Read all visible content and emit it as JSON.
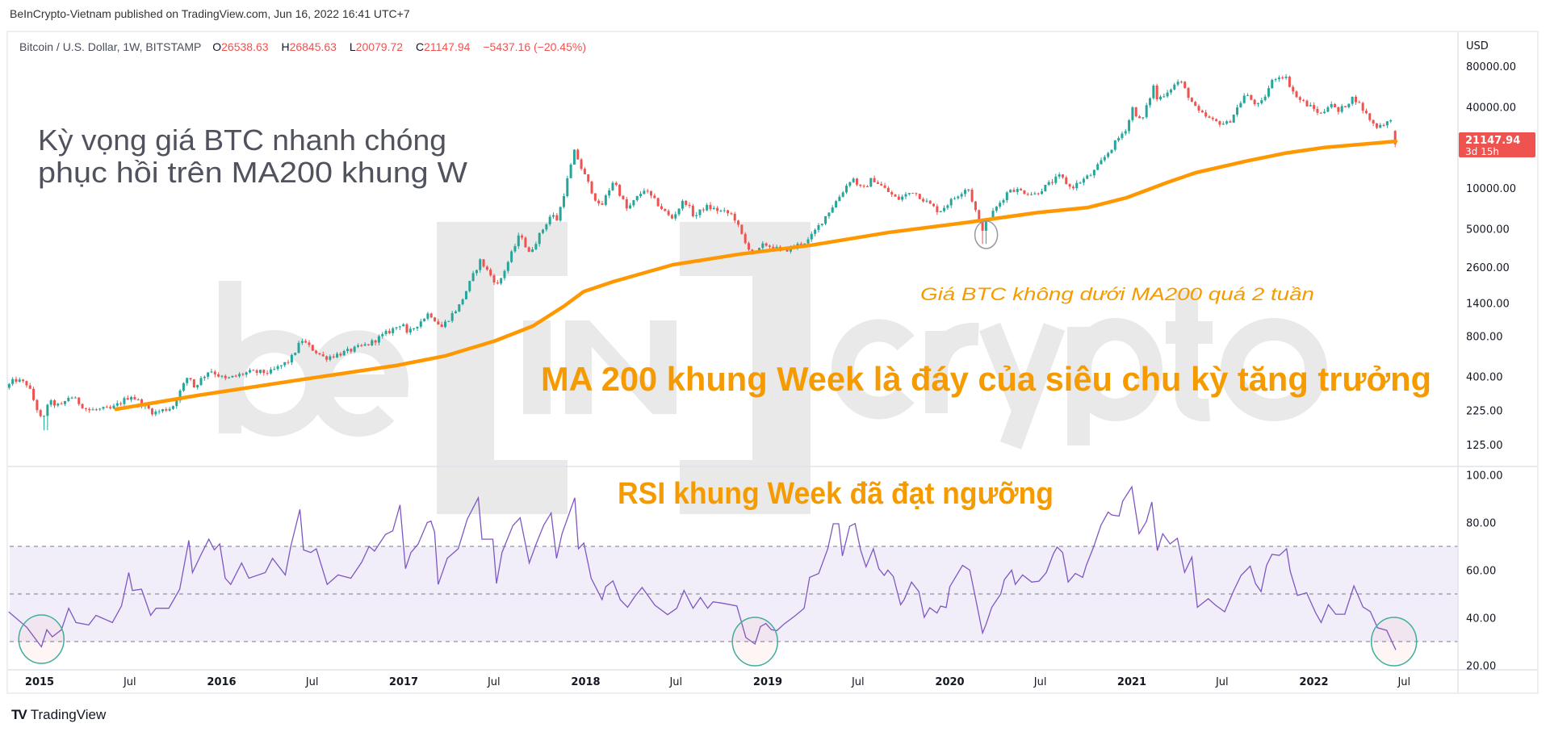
{
  "header": {
    "published": "BeInCrypto-Vietnam published on TradingView.com, Jun 16, 2022 16:41 UTC+7"
  },
  "legend": {
    "symbol": "Bitcoin / U.S. Dollar, 1W, BITSTAMP",
    "o_label": "O",
    "o": "26538.63",
    "h_label": "H",
    "h": "26845.63",
    "l_label": "L",
    "l": "20079.72",
    "c_label": "C",
    "c": "21147.94",
    "change": "−5437.16 (−20.45%)"
  },
  "price_axis": {
    "currency": "USD",
    "ticks": [
      "80000.00",
      "40000.00",
      "10000.00",
      "5000.00",
      "2600.00",
      "1400.00",
      "800.00",
      "400.00",
      "225.00",
      "125.00"
    ],
    "last_price": "21147.94",
    "countdown": "3d 15h"
  },
  "rsi_axis": {
    "ticks": [
      "100.00",
      "80.00",
      "60.00",
      "40.00",
      "20.00"
    ]
  },
  "time_axis": [
    {
      "label": "2015",
      "date": "2015-01-01",
      "year": true
    },
    {
      "label": "Jul",
      "date": "2015-07-01"
    },
    {
      "label": "2016",
      "date": "2016-01-01",
      "year": true
    },
    {
      "label": "Jul",
      "date": "2016-07-01"
    },
    {
      "label": "2017",
      "date": "2017-01-01",
      "year": true
    },
    {
      "label": "Jul",
      "date": "2017-07-01"
    },
    {
      "label": "2018",
      "date": "2018-01-01",
      "year": true
    },
    {
      "label": "Jul",
      "date": "2018-07-01"
    },
    {
      "label": "2019",
      "date": "2019-01-01",
      "year": true
    },
    {
      "label": "Jul",
      "date": "2019-07-01"
    },
    {
      "label": "2020",
      "date": "2020-01-01",
      "year": true
    },
    {
      "label": "Jul",
      "date": "2020-07-01"
    },
    {
      "label": "2021",
      "date": "2021-01-01",
      "year": true
    },
    {
      "label": "Jul",
      "date": "2021-07-01"
    },
    {
      "label": "2022",
      "date": "2022-01-01",
      "year": true
    },
    {
      "label": "Jul",
      "date": "2022-07-01"
    }
  ],
  "annotations": {
    "title_line1": "Kỳ vọng giá BTC nhanh chóng",
    "title_line2": "phục hồi trên MA200 khung W",
    "ma_note": "Giá BTC không dưới MA200 quá 2 tuần",
    "ma_bottom": "MA 200 khung Week là đáy của siêu chu kỳ tăng trưởng",
    "rsi_note": "RSI khung Week đã đạt ngưỡng"
  },
  "watermark": {
    "left": "be",
    "mid": "IN",
    "right": "crypto"
  },
  "footer": {
    "logo": "TV",
    "brand": "TradingView"
  },
  "colors": {
    "up": "#26a69a",
    "down": "#ef5350",
    "ma": "#ff9800",
    "rsi": "#7e57c2",
    "annotation": "#f59b00",
    "title": "#50535e",
    "circle_green": "#3fae9c",
    "circle_gray": "#9598a1"
  },
  "chart_data": {
    "type": "candlestick+line",
    "title": "Bitcoin / U.S. Dollar, 1W, BITSTAMP",
    "yscale": "log",
    "ylim": [
      100,
      100000
    ],
    "xlim": [
      "2014-10-20",
      "2022-12-01"
    ],
    "price_path_approx": [
      [
        "2014-11-01",
        330
      ],
      [
        "2014-11-20",
        380
      ],
      [
        "2014-12-15",
        350
      ],
      [
        "2015-01-14",
        180
      ],
      [
        "2015-01-25",
        260
      ],
      [
        "2015-02-20",
        240
      ],
      [
        "2015-03-10",
        290
      ],
      [
        "2015-04-15",
        225
      ],
      [
        "2015-06-01",
        230
      ],
      [
        "2015-07-10",
        290
      ],
      [
        "2015-08-25",
        215
      ],
      [
        "2015-10-01",
        237
      ],
      [
        "2015-11-04",
        420
      ],
      [
        "2015-11-12",
        330
      ],
      [
        "2015-12-15",
        450
      ],
      [
        "2016-01-15",
        380
      ],
      [
        "2016-03-01",
        430
      ],
      [
        "2016-04-15",
        430
      ],
      [
        "2016-05-25",
        530
      ],
      [
        "2016-06-17",
        750
      ],
      [
        "2016-07-01",
        670
      ],
      [
        "2016-08-02",
        550
      ],
      [
        "2016-09-15",
        610
      ],
      [
        "2016-10-31",
        700
      ],
      [
        "2016-12-31",
        965
      ],
      [
        "2017-01-05",
        1100
      ],
      [
        "2017-01-12",
        800
      ],
      [
        "2017-02-28",
        1190
      ],
      [
        "2017-03-25",
        930
      ],
      [
        "2017-04-30",
        1350
      ],
      [
        "2017-06-10",
        2900
      ],
      [
        "2017-07-16",
        1900
      ],
      [
        "2017-08-31",
        4700
      ],
      [
        "2017-09-15",
        3200
      ],
      [
        "2017-10-31",
        6400
      ],
      [
        "2017-11-12",
        5800
      ],
      [
        "2017-12-17",
        19000
      ],
      [
        "2017-12-31",
        13800
      ],
      [
        "2018-02-06",
        7000
      ],
      [
        "2018-03-05",
        11500
      ],
      [
        "2018-04-01",
        6900
      ],
      [
        "2018-05-05",
        9800
      ],
      [
        "2018-06-29",
        5900
      ],
      [
        "2018-07-25",
        8200
      ],
      [
        "2018-08-14",
        6100
      ],
      [
        "2018-09-05",
        7300
      ],
      [
        "2018-10-31",
        6300
      ],
      [
        "2018-11-25",
        3800
      ],
      [
        "2018-12-15",
        3250
      ],
      [
        "2019-01-01",
        3850
      ],
      [
        "2019-02-07",
        3400
      ],
      [
        "2019-03-31",
        4100
      ],
      [
        "2019-05-31",
        8600
      ],
      [
        "2019-06-26",
        12000
      ],
      [
        "2019-07-17",
        9600
      ],
      [
        "2019-08-06",
        11800
      ],
      [
        "2019-09-25",
        8200
      ],
      [
        "2019-10-26",
        9500
      ],
      [
        "2019-12-17",
        6700
      ],
      [
        "2020-02-13",
        10300
      ],
      [
        "2020-03-12",
        4900
      ],
      [
        "2020-04-01",
        6400
      ],
      [
        "2020-05-08",
        9900
      ],
      [
        "2020-06-27",
        9000
      ],
      [
        "2020-08-17",
        12300
      ],
      [
        "2020-09-07",
        10000
      ],
      [
        "2020-10-21",
        12800
      ],
      [
        "2020-12-31",
        29000
      ],
      [
        "2021-01-08",
        40000
      ],
      [
        "2021-01-27",
        30400
      ],
      [
        "2021-02-21",
        57500
      ],
      [
        "2021-02-28",
        45000
      ],
      [
        "2021-04-14",
        63000
      ],
      [
        "2021-05-19",
        37000
      ],
      [
        "2021-06-22",
        31000
      ],
      [
        "2021-07-20",
        30000
      ],
      [
        "2021-08-23",
        49500
      ],
      [
        "2021-09-21",
        40000
      ],
      [
        "2021-10-20",
        66000
      ],
      [
        "2021-11-10",
        68500
      ],
      [
        "2021-12-04",
        47000
      ],
      [
        "2022-01-24",
        35000
      ],
      [
        "2022-02-10",
        44000
      ],
      [
        "2022-02-24",
        36000
      ],
      [
        "2022-03-29",
        47500
      ],
      [
        "2022-05-11",
        28500
      ],
      [
        "2022-06-06",
        31000
      ]
    ],
    "wick_lows": [
      [
        "2015-01-14",
        160
      ],
      [
        "2020-03-12",
        3850
      ]
    ],
    "last_candle": {
      "date": "2022-06-13",
      "open": 26538.63,
      "high": 26845.63,
      "low": 20079.72,
      "close": 21147.94
    },
    "ma200": {
      "name": "MA 200 (weekly)",
      "points": [
        [
          2015.42,
          229
        ],
        [
          2015.87,
          290
        ],
        [
          2016.41,
          375
        ],
        [
          2016.96,
          483
        ],
        [
          2017.23,
          570
        ],
        [
          2017.5,
          734
        ],
        [
          2017.71,
          947
        ],
        [
          2017.88,
          1328
        ],
        [
          2017.99,
          1710
        ],
        [
          2018.15,
          2020
        ],
        [
          2018.48,
          2700
        ],
        [
          2018.85,
          3240
        ],
        [
          2019.24,
          3770
        ],
        [
          2019.67,
          4700
        ],
        [
          2020.1,
          5570
        ],
        [
          2020.49,
          6600
        ],
        [
          2020.76,
          7170
        ],
        [
          2020.97,
          8470
        ],
        [
          2021.19,
          10940
        ],
        [
          2021.35,
          13000
        ],
        [
          2021.63,
          15850
        ],
        [
          2021.84,
          18100
        ],
        [
          2022.06,
          20000
        ],
        [
          2022.45,
          22200
        ]
      ]
    },
    "rsi": {
      "name": "RSI (weekly)",
      "ylim": [
        20,
        100
      ],
      "bands": [
        30,
        50,
        70
      ],
      "points": [
        [
          2014.83,
          42.5
        ],
        [
          2014.93,
          36
        ],
        [
          2015.01,
          27.8
        ],
        [
          2015.04,
          35
        ],
        [
          2015.07,
          32
        ],
        [
          2015.12,
          35
        ],
        [
          2015.16,
          44
        ],
        [
          2015.2,
          38
        ],
        [
          2015.27,
          37
        ],
        [
          2015.31,
          41
        ],
        [
          2015.4,
          38
        ],
        [
          2015.45,
          45
        ],
        [
          2015.49,
          59
        ],
        [
          2015.51,
          51.5
        ],
        [
          2015.56,
          52
        ],
        [
          2015.61,
          41
        ],
        [
          2015.64,
          44
        ],
        [
          2015.71,
          44
        ],
        [
          2015.77,
          52
        ],
        [
          2015.82,
          72.5
        ],
        [
          2015.84,
          59
        ],
        [
          2015.89,
          67
        ],
        [
          2015.93,
          73
        ],
        [
          2015.96,
          68.5
        ],
        [
          2015.99,
          71
        ],
        [
          2016.02,
          56.6
        ],
        [
          2016.05,
          54
        ],
        [
          2016.11,
          63
        ],
        [
          2016.15,
          56.6
        ],
        [
          2016.24,
          59
        ],
        [
          2016.28,
          65
        ],
        [
          2016.35,
          58
        ],
        [
          2016.38,
          70
        ],
        [
          2016.43,
          85.5
        ],
        [
          2016.45,
          68.5
        ],
        [
          2016.49,
          67.4
        ],
        [
          2016.52,
          69
        ],
        [
          2016.58,
          54
        ],
        [
          2016.64,
          58
        ],
        [
          2016.71,
          56.6
        ],
        [
          2016.77,
          63.4
        ],
        [
          2016.81,
          70
        ],
        [
          2016.84,
          68
        ],
        [
          2016.9,
          75
        ],
        [
          2016.94,
          76.5
        ],
        [
          2016.98,
          87.4
        ],
        [
          2017.01,
          60.6
        ],
        [
          2017.04,
          67.4
        ],
        [
          2017.08,
          71
        ],
        [
          2017.13,
          80
        ],
        [
          2017.15,
          80.6
        ],
        [
          2017.17,
          76
        ],
        [
          2017.19,
          54
        ],
        [
          2017.24,
          65
        ],
        [
          2017.3,
          69
        ],
        [
          2017.35,
          81.5
        ],
        [
          2017.41,
          90.4
        ],
        [
          2017.43,
          73
        ],
        [
          2017.49,
          73
        ],
        [
          2017.51,
          54.4
        ],
        [
          2017.54,
          67.4
        ],
        [
          2017.6,
          78.7
        ],
        [
          2017.64,
          82
        ],
        [
          2017.69,
          63
        ],
        [
          2017.73,
          71.4
        ],
        [
          2017.77,
          79
        ],
        [
          2017.81,
          84
        ],
        [
          2017.84,
          65
        ],
        [
          2017.87,
          75.3
        ],
        [
          2017.94,
          90.4
        ],
        [
          2017.96,
          69
        ],
        [
          2017.99,
          71.4
        ],
        [
          2018.03,
          56.6
        ],
        [
          2018.09,
          47.6
        ],
        [
          2018.11,
          53
        ],
        [
          2018.15,
          55.5
        ],
        [
          2018.19,
          47.6
        ],
        [
          2018.23,
          44.4
        ],
        [
          2018.27,
          49
        ],
        [
          2018.31,
          52.7
        ],
        [
          2018.38,
          45.3
        ],
        [
          2018.45,
          41.3
        ],
        [
          2018.5,
          44
        ],
        [
          2018.54,
          51.5
        ],
        [
          2018.59,
          44
        ],
        [
          2018.63,
          48.5
        ],
        [
          2018.67,
          44
        ],
        [
          2018.7,
          46.7
        ],
        [
          2018.76,
          46
        ],
        [
          2018.83,
          45
        ],
        [
          2018.88,
          31.7
        ],
        [
          2018.93,
          29
        ],
        [
          2018.96,
          36.3
        ],
        [
          2018.99,
          37.6
        ],
        [
          2019.02,
          35
        ],
        [
          2019.05,
          34.6
        ],
        [
          2019.09,
          37.4
        ],
        [
          2019.15,
          40.8
        ],
        [
          2019.2,
          44
        ],
        [
          2019.23,
          57
        ],
        [
          2019.28,
          58.6
        ],
        [
          2019.33,
          69
        ],
        [
          2019.36,
          79.5
        ],
        [
          2019.39,
          79.5
        ],
        [
          2019.41,
          66
        ],
        [
          2019.45,
          78.4
        ],
        [
          2019.48,
          79.6
        ],
        [
          2019.51,
          68.5
        ],
        [
          2019.54,
          61.4
        ],
        [
          2019.58,
          69
        ],
        [
          2019.61,
          60.6
        ],
        [
          2019.64,
          57.8
        ],
        [
          2019.66,
          60
        ],
        [
          2019.69,
          57.3
        ],
        [
          2019.73,
          45.5
        ],
        [
          2019.75,
          47.7
        ],
        [
          2019.79,
          55
        ],
        [
          2019.83,
          51
        ],
        [
          2019.86,
          40.2
        ],
        [
          2019.89,
          44.2
        ],
        [
          2019.93,
          42
        ],
        [
          2019.95,
          44.9
        ],
        [
          2019.98,
          44.3
        ],
        [
          2020.0,
          53
        ],
        [
          2020.07,
          62
        ],
        [
          2020.11,
          60
        ],
        [
          2020.14,
          48.7
        ],
        [
          2020.18,
          33.6
        ],
        [
          2020.2,
          37.4
        ],
        [
          2020.23,
          44.3
        ],
        [
          2020.28,
          50
        ],
        [
          2020.3,
          56
        ],
        [
          2020.34,
          60
        ],
        [
          2020.36,
          54
        ],
        [
          2020.4,
          58
        ],
        [
          2020.45,
          55
        ],
        [
          2020.49,
          55.4
        ],
        [
          2020.53,
          59
        ],
        [
          2020.57,
          67
        ],
        [
          2020.59,
          69.7
        ],
        [
          2020.62,
          67.4
        ],
        [
          2020.65,
          55
        ],
        [
          2020.69,
          58.6
        ],
        [
          2020.73,
          57
        ],
        [
          2020.75,
          62
        ],
        [
          2020.79,
          69.7
        ],
        [
          2020.83,
          78.8
        ],
        [
          2020.87,
          84.4
        ],
        [
          2020.89,
          83.2
        ],
        [
          2020.93,
          82.7
        ],
        [
          2020.95,
          89
        ],
        [
          2021.0,
          95
        ],
        [
          2021.04,
          75.3
        ],
        [
          2021.08,
          80.4
        ],
        [
          2021.11,
          88.6
        ],
        [
          2021.14,
          68.2
        ],
        [
          2021.17,
          75.3
        ],
        [
          2021.21,
          71
        ],
        [
          2021.25,
          73.4
        ],
        [
          2021.29,
          59.1
        ],
        [
          2021.33,
          65.5
        ],
        [
          2021.36,
          44.4
        ],
        [
          2021.42,
          48
        ],
        [
          2021.46,
          45.3
        ],
        [
          2021.51,
          42.5
        ],
        [
          2021.56,
          51.5
        ],
        [
          2021.6,
          57.8
        ],
        [
          2021.65,
          61.7
        ],
        [
          2021.68,
          54.3
        ],
        [
          2021.71,
          51
        ],
        [
          2021.74,
          62
        ],
        [
          2021.77,
          66.6
        ],
        [
          2021.81,
          66.2
        ],
        [
          2021.85,
          69
        ],
        [
          2021.87,
          59.6
        ],
        [
          2021.91,
          49.4
        ],
        [
          2021.96,
          50.5
        ],
        [
          2022.01,
          42
        ],
        [
          2022.04,
          38
        ],
        [
          2022.08,
          45.5
        ],
        [
          2022.12,
          41.5
        ],
        [
          2022.17,
          41.5
        ],
        [
          2022.22,
          53.4
        ],
        [
          2022.27,
          44.5
        ],
        [
          2022.31,
          42.6
        ],
        [
          2022.35,
          35.8
        ],
        [
          2022.4,
          34.7
        ],
        [
          2022.45,
          26.5
        ]
      ]
    },
    "highlight_circles": [
      {
        "pane": "price",
        "date": 2020.2,
        "value": 4500,
        "color": "gray"
      },
      {
        "pane": "rsi",
        "date": 2015.01,
        "value": 31,
        "color": "green"
      },
      {
        "pane": "rsi",
        "date": 2018.93,
        "value": 30,
        "color": "green"
      },
      {
        "pane": "rsi",
        "date": 2022.44,
        "value": 30,
        "color": "green"
      }
    ]
  }
}
